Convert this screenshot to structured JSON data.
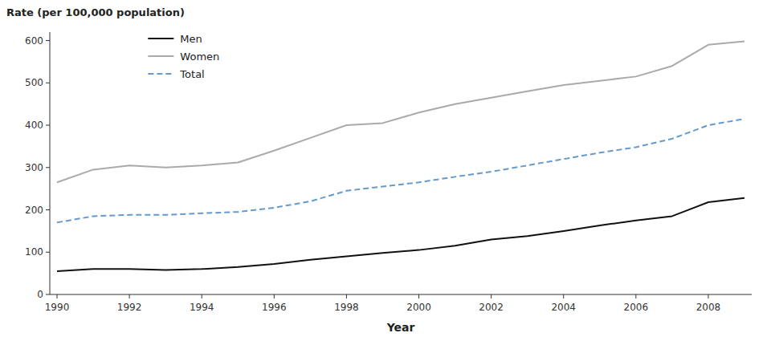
{
  "chart_data": {
    "type": "line",
    "xlabel": "Year",
    "ylabel": "Rate (per 100,000 population)",
    "x": [
      1990,
      1991,
      1992,
      1993,
      1994,
      1995,
      1996,
      1997,
      1998,
      1999,
      2000,
      2001,
      2002,
      2003,
      2004,
      2005,
      2006,
      2007,
      2008,
      2009
    ],
    "series": [
      {
        "name": "Men",
        "color": "#111111",
        "line_style": "solid",
        "values": [
          55,
          60,
          60,
          58,
          60,
          65,
          72,
          82,
          90,
          98,
          105,
          115,
          130,
          138,
          150,
          163,
          175,
          185,
          218,
          228
        ]
      },
      {
        "name": "Women",
        "color": "#aaaaaa",
        "line_style": "solid",
        "values": [
          265,
          295,
          305,
          300,
          305,
          312,
          340,
          370,
          400,
          405,
          430,
          450,
          465,
          480,
          495,
          505,
          515,
          540,
          590,
          598
        ]
      },
      {
        "name": "Total",
        "color": "#6699cc",
        "line_style": "dashed",
        "values": [
          170,
          185,
          188,
          188,
          192,
          195,
          205,
          220,
          245,
          255,
          265,
          278,
          290,
          305,
          320,
          335,
          348,
          368,
          400,
          415
        ]
      }
    ],
    "xlim": [
      1989.8,
      2009.2
    ],
    "xticks": [
      1990,
      1992,
      1994,
      1996,
      1998,
      2000,
      2002,
      2004,
      2006,
      2008
    ],
    "ylim": [
      0,
      620
    ],
    "yticks": [
      0,
      100,
      200,
      300,
      400,
      500,
      600
    ],
    "grid": false,
    "legend": "upper left"
  }
}
